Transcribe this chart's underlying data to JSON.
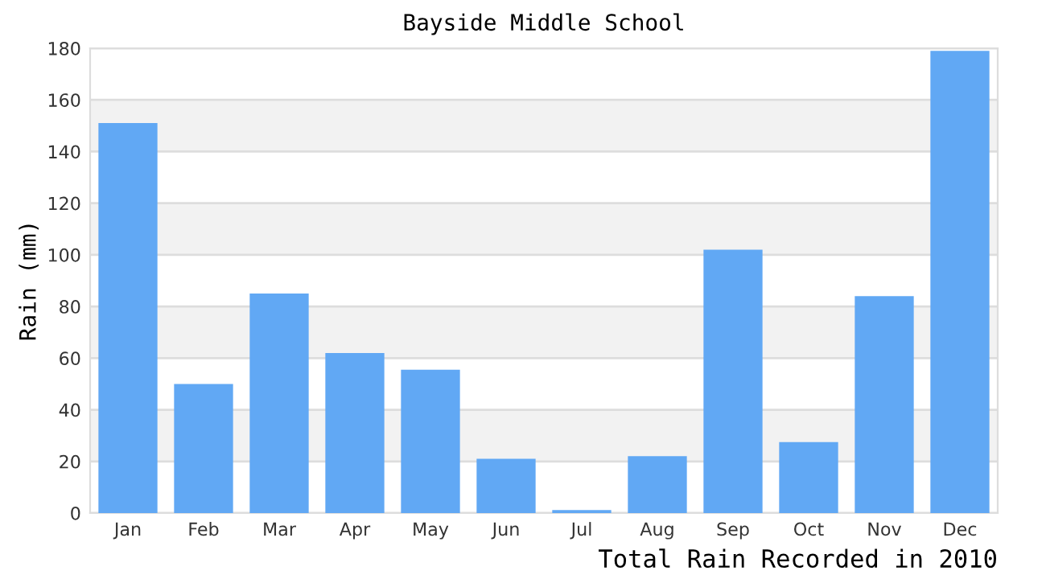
{
  "chart_data": {
    "type": "bar",
    "title": "Bayside Middle School",
    "xlabel": "Total Rain Recorded in 2010",
    "ylabel": "Rain (mm)",
    "categories": [
      "Jan",
      "Feb",
      "Mar",
      "Apr",
      "May",
      "Jun",
      "Jul",
      "Aug",
      "Sep",
      "Oct",
      "Nov",
      "Dec"
    ],
    "values": [
      151,
      50,
      85,
      62,
      55.5,
      21,
      1.2,
      22,
      102,
      27.5,
      84,
      179
    ],
    "color": "#61a8f4",
    "ylim": [
      0,
      180
    ],
    "yticks": [
      0,
      20,
      40,
      60,
      80,
      100,
      120,
      140,
      160,
      180
    ],
    "grid": "y",
    "bands": [
      {
        "axis": "y",
        "from": 20,
        "to": 40,
        "color": "#f2f2f2"
      },
      {
        "axis": "y",
        "from": 60,
        "to": 80,
        "color": "#f2f2f2"
      },
      {
        "axis": "y",
        "from": 100,
        "to": 120,
        "color": "#f2f2f2"
      },
      {
        "axis": "y",
        "from": 140,
        "to": 160,
        "color": "#f2f2f2"
      }
    ]
  }
}
